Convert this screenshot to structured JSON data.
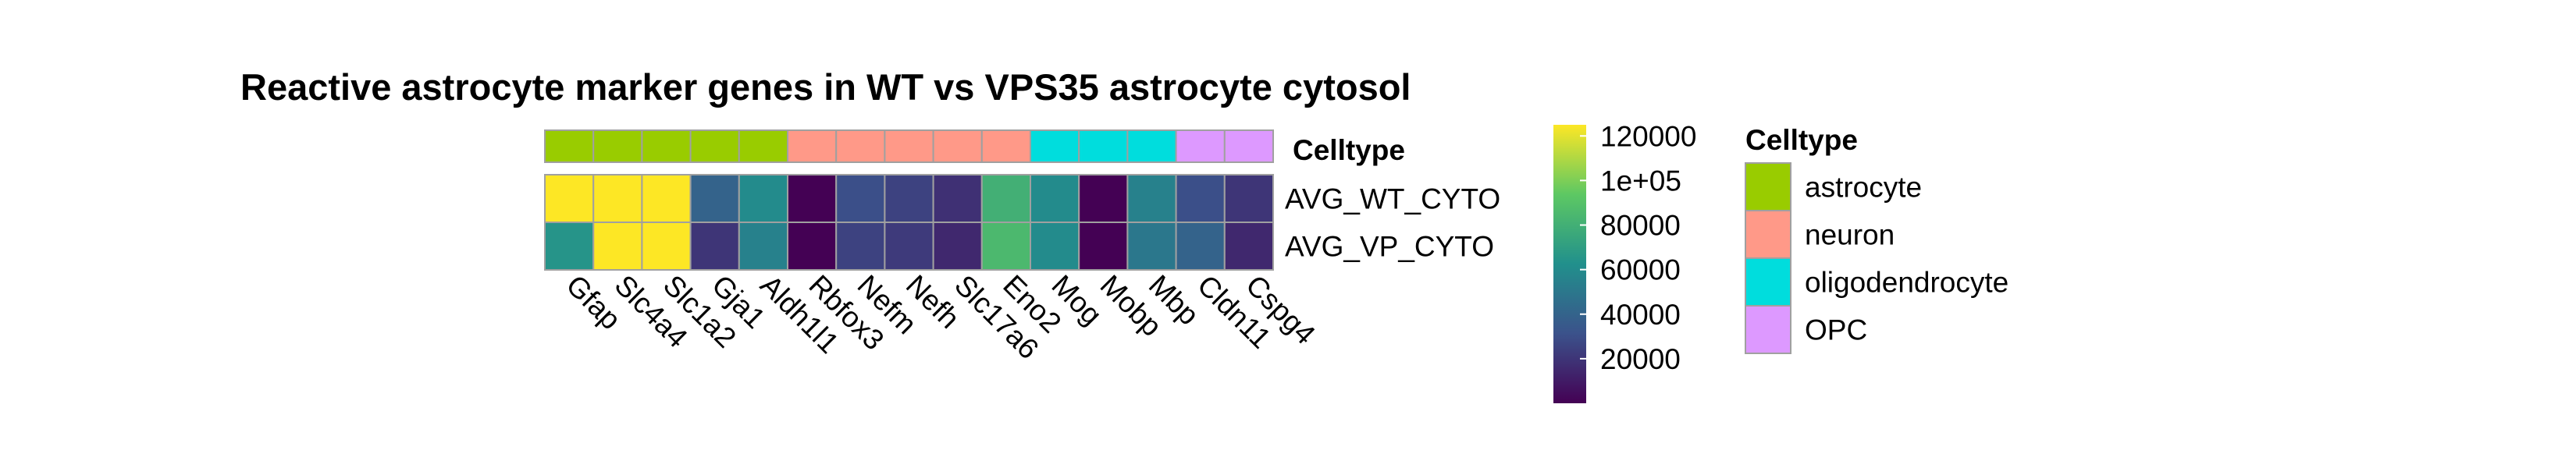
{
  "chart_data": {
    "type": "heatmap",
    "title": "Reactive astrocyte marker genes in WT vs VPS35 astrocyte cytosol",
    "columns": [
      "Gfap",
      "Slc4a4",
      "Slc1a2",
      "Gja1",
      "Aldh1l1",
      "Rbfox3",
      "Nefm",
      "Nefh",
      "Slc17a6",
      "Eno2",
      "Mog",
      "Mobp",
      "Mbp",
      "Cldn11",
      "Cspg4"
    ],
    "annotation": {
      "name": "Celltype",
      "values": [
        "astrocyte",
        "astrocyte",
        "astrocyte",
        "astrocyte",
        "astrocyte",
        "neuron",
        "neuron",
        "neuron",
        "neuron",
        "neuron",
        "oligodendrocyte",
        "oligodendrocyte",
        "oligodendrocyte",
        "OPC",
        "OPC"
      ]
    },
    "rows": [
      {
        "name": "AVG_WT_CYTO",
        "values": [
          125000,
          125000,
          125000,
          40000,
          60000,
          0,
          30000,
          25000,
          18000,
          80000,
          60000,
          0,
          55000,
          30000,
          20000
        ]
      },
      {
        "name": "AVG_VP_CYTO",
        "values": [
          65000,
          125000,
          125000,
          20000,
          55000,
          0,
          25000,
          22000,
          15000,
          85000,
          60000,
          0,
          50000,
          40000,
          15000
        ]
      }
    ],
    "colorbar": {
      "min": 0,
      "max": 125000,
      "ticks": [
        20000,
        40000,
        60000,
        80000,
        100000,
        120000
      ],
      "tick_labels": [
        "20000",
        "40000",
        "60000",
        "80000",
        "1e+05",
        "120000"
      ],
      "palette": [
        "#440154",
        "#3B528B",
        "#21908C",
        "#5DC863",
        "#FDE725"
      ]
    },
    "legend": {
      "title": "Celltype",
      "entries": [
        {
          "label": "astrocyte",
          "color": "#99CC00"
        },
        {
          "label": "neuron",
          "color": "#FF9988"
        },
        {
          "label": "oligodendrocyte",
          "color": "#00DDDD"
        },
        {
          "label": "OPC",
          "color": "#DD99FF"
        }
      ]
    }
  }
}
